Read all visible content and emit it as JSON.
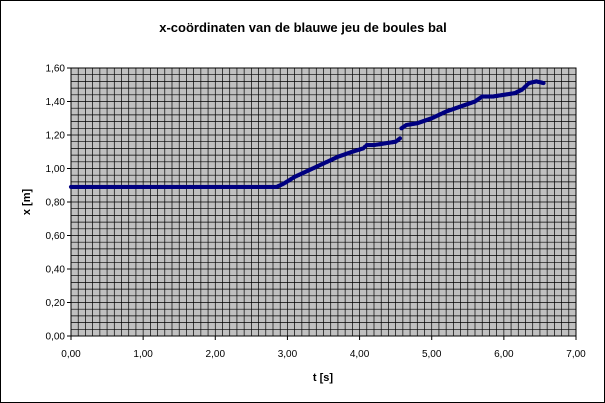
{
  "chart_data": {
    "type": "scatter",
    "title": "x-coördinaten van de blauwe jeu de boules bal",
    "xlabel": "t [s]",
    "ylabel": "x [m]",
    "xlim": [
      0,
      7
    ],
    "ylim": [
      0,
      1.6
    ],
    "x_ticks": [
      "0,00",
      "1,00",
      "2,00",
      "3,00",
      "4,00",
      "5,00",
      "6,00",
      "7,00"
    ],
    "y_ticks": [
      "0,00",
      "0,20",
      "0,40",
      "0,60",
      "0,80",
      "1,00",
      "1,20",
      "1,40",
      "1,60"
    ],
    "grid": true,
    "legend": "none",
    "colors": {
      "plot_background": "#c0c0c0",
      "gridline": "#000000",
      "series": "#000080"
    },
    "series": [
      {
        "x": [
          0.0,
          0.5,
          1.0,
          1.5,
          2.0,
          2.5,
          2.85,
          2.95,
          3.1,
          3.3,
          3.5,
          3.7,
          3.9,
          4.05,
          4.1,
          4.2,
          4.35,
          4.5,
          4.56,
          4.58,
          4.65,
          4.8,
          5.0,
          5.2,
          5.4,
          5.6,
          5.7,
          5.85,
          6.0,
          6.15,
          6.25,
          6.35,
          6.45,
          6.55
        ],
        "y": [
          0.89,
          0.89,
          0.89,
          0.89,
          0.89,
          0.89,
          0.89,
          0.91,
          0.95,
          0.99,
          1.03,
          1.07,
          1.1,
          1.12,
          1.14,
          1.14,
          1.15,
          1.16,
          1.18,
          1.24,
          1.26,
          1.27,
          1.3,
          1.34,
          1.37,
          1.4,
          1.43,
          1.43,
          1.44,
          1.45,
          1.47,
          1.51,
          1.52,
          1.51
        ]
      }
    ]
  }
}
